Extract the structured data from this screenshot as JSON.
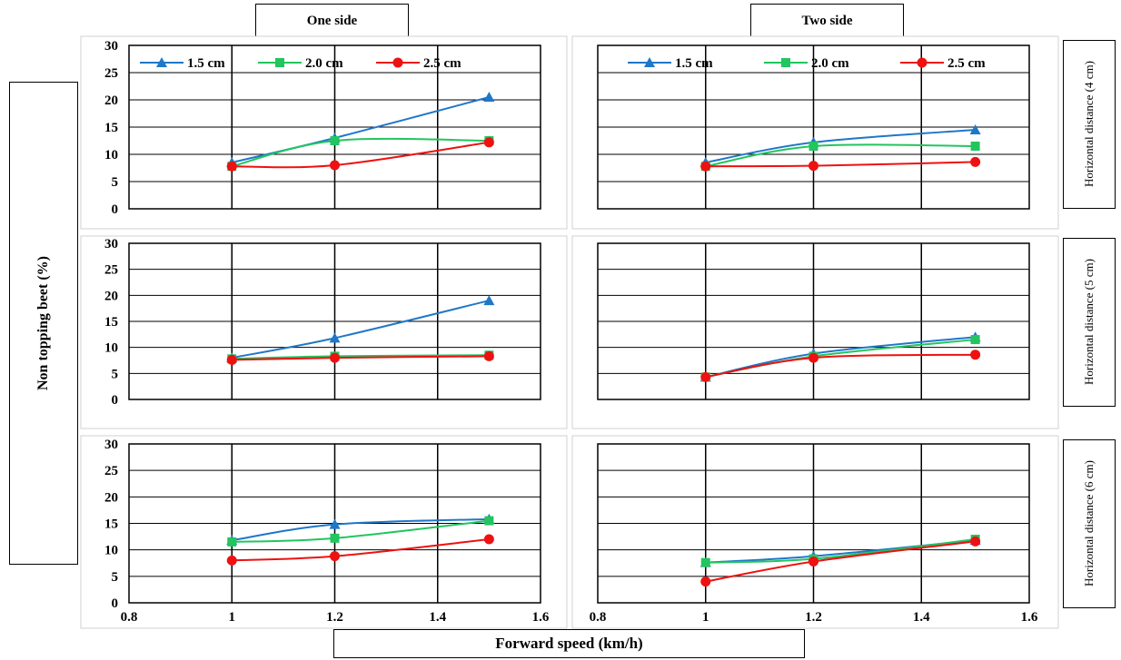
{
  "figure": {
    "col_titles": [
      "One side",
      "Two side"
    ],
    "row_labels": [
      "Horizontal distance (4 cm)",
      "Horizontal distance (5 cm)",
      "Horizontal distance (6 cm)"
    ],
    "ylabel": "Non topping beet (%)",
    "xlabel": "Forward speed (km/h)"
  },
  "chart_data": [
    {
      "type": "line",
      "panel": "One side / Horizontal distance (4 cm)",
      "x": [
        1,
        1.2,
        1.5
      ],
      "xlim": [
        0.8,
        1.6
      ],
      "ylim": [
        0,
        30
      ],
      "yticks": [
        "0",
        "5",
        "10",
        "15",
        "20",
        "25",
        "30"
      ],
      "xticks": [],
      "legend": "top",
      "grid": true,
      "series": [
        {
          "name": "1.5 cm",
          "color": "#1f77c8",
          "marker": "triangle",
          "values": [
            8.5,
            13,
            20.5
          ]
        },
        {
          "name": "2.0 cm",
          "color": "#22c55e",
          "marker": "square",
          "values": [
            7.8,
            12.5,
            12.5
          ]
        },
        {
          "name": "2.5 cm",
          "color": "#ee1111",
          "marker": "circle",
          "values": [
            7.8,
            8.0,
            12.2
          ]
        }
      ]
    },
    {
      "type": "line",
      "panel": "Two side / Horizontal distance (4 cm)",
      "x": [
        1,
        1.2,
        1.5
      ],
      "xlim": [
        0.8,
        1.6
      ],
      "ylim": [
        0,
        30
      ],
      "yticks": [],
      "xticks": [],
      "legend": "top",
      "grid": true,
      "series": [
        {
          "name": "1.5 cm",
          "color": "#1f77c8",
          "marker": "triangle",
          "values": [
            8.5,
            12.2,
            14.5
          ]
        },
        {
          "name": "2.0 cm",
          "color": "#22c55e",
          "marker": "square",
          "values": [
            7.8,
            11.5,
            11.5
          ]
        },
        {
          "name": "2.5 cm",
          "color": "#ee1111",
          "marker": "circle",
          "values": [
            7.8,
            7.9,
            8.6
          ]
        }
      ]
    },
    {
      "type": "line",
      "panel": "One side / Horizontal distance (5 cm)",
      "x": [
        1,
        1.2,
        1.5
      ],
      "xlim": [
        0.8,
        1.6
      ],
      "ylim": [
        0,
        30
      ],
      "yticks": [
        "0",
        "5",
        "10",
        "15",
        "20",
        "25",
        "30"
      ],
      "xticks": [],
      "legend": "none",
      "grid": true,
      "series": [
        {
          "name": "1.5 cm",
          "color": "#1f77c8",
          "marker": "triangle",
          "values": [
            8,
            11.8,
            19
          ]
        },
        {
          "name": "2.0 cm",
          "color": "#22c55e",
          "marker": "square",
          "values": [
            7.8,
            8.3,
            8.5
          ]
        },
        {
          "name": "2.5 cm",
          "color": "#ee1111",
          "marker": "circle",
          "values": [
            7.6,
            8.0,
            8.3
          ]
        }
      ]
    },
    {
      "type": "line",
      "panel": "Two side / Horizontal distance (5 cm)",
      "x": [
        1,
        1.2,
        1.5
      ],
      "xlim": [
        0.8,
        1.6
      ],
      "ylim": [
        0,
        30
      ],
      "yticks": [],
      "xticks": [],
      "legend": "none",
      "grid": true,
      "series": [
        {
          "name": "1.5 cm",
          "color": "#1f77c8",
          "marker": "triangle",
          "values": [
            4.3,
            8.8,
            12
          ]
        },
        {
          "name": "2.0 cm",
          "color": "#22c55e",
          "marker": "square",
          "values": [
            4.3,
            8.3,
            11.5
          ]
        },
        {
          "name": "2.5 cm",
          "color": "#ee1111",
          "marker": "circle",
          "values": [
            4.3,
            8.0,
            8.6
          ]
        }
      ]
    },
    {
      "type": "line",
      "panel": "One side / Horizontal distance (6 cm)",
      "x": [
        1,
        1.2,
        1.5
      ],
      "xlim": [
        0.8,
        1.6
      ],
      "ylim": [
        0,
        30
      ],
      "yticks": [
        "0",
        "5",
        "10",
        "15",
        "20",
        "25",
        "30"
      ],
      "xticks": [
        "0.8",
        "1",
        "1.2",
        "1.4",
        "1.6"
      ],
      "legend": "none",
      "grid": true,
      "series": [
        {
          "name": "1.5 cm",
          "color": "#1f77c8",
          "marker": "triangle",
          "values": [
            11.8,
            14.8,
            15.8
          ]
        },
        {
          "name": "2.0 cm",
          "color": "#22c55e",
          "marker": "square",
          "values": [
            11.5,
            12.2,
            15.5
          ]
        },
        {
          "name": "2.5 cm",
          "color": "#ee1111",
          "marker": "circle",
          "values": [
            8,
            8.8,
            12
          ]
        }
      ]
    },
    {
      "type": "line",
      "panel": "Two side / Horizontal distance (6 cm)",
      "x": [
        1,
        1.2,
        1.5
      ],
      "xlim": [
        0.8,
        1.6
      ],
      "ylim": [
        0,
        30
      ],
      "yticks": [],
      "xticks": [
        "0.8",
        "1",
        "1.2",
        "1.4",
        "1.6"
      ],
      "legend": "none",
      "grid": true,
      "series": [
        {
          "name": "1.5 cm",
          "color": "#1f77c8",
          "marker": "triangle",
          "values": [
            7.6,
            8.8,
            11.8
          ]
        },
        {
          "name": "2.0 cm",
          "color": "#22c55e",
          "marker": "square",
          "values": [
            7.6,
            8.3,
            12
          ]
        },
        {
          "name": "2.5 cm",
          "color": "#ee1111",
          "marker": "circle",
          "values": [
            4,
            7.8,
            11.6
          ]
        }
      ]
    }
  ]
}
